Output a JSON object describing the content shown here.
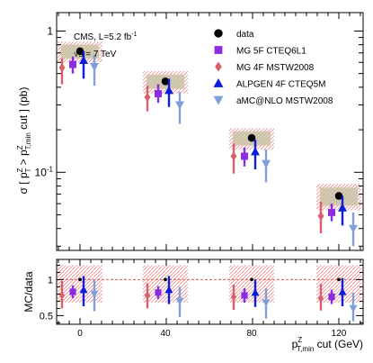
{
  "chart_data": {
    "type": "scatter",
    "x_categories": [
      0,
      40,
      80,
      120
    ],
    "xlabel_main": "p",
    "xlabel_sup": "Z",
    "xlabel_sub": "T,min",
    "xlabel_tail": " cut (GeV)",
    "ylabel_upper": "σ [ p_T^Z > p_T,min^Z cut ] (pb)",
    "ylabel_lower": "MC/data",
    "annotation_line1": "CMS, L=5.2 fb",
    "annotation_line1_sup": "-1",
    "annotation_line2": "√s = 7 TeV",
    "upper": {
      "yscale": "log",
      "ylim": [
        0.028,
        1.35
      ],
      "ytick_labels": [
        {
          "value": 1,
          "base": "1",
          "exp": ""
        },
        {
          "value": 0.1,
          "base": "10",
          "exp": "-1"
        }
      ],
      "data_values": [
        0.72,
        0.44,
        0.175,
        0.068
      ],
      "data_syst_band": [
        [
          0.64,
          0.8
        ],
        [
          0.39,
          0.49
        ],
        [
          0.155,
          0.195
        ],
        [
          0.058,
          0.078
        ]
      ],
      "data_stat_band": [
        [
          0.6,
          0.84
        ],
        [
          0.36,
          0.52
        ],
        [
          0.145,
          0.205
        ],
        [
          0.054,
          0.083
        ]
      ]
    },
    "lower": {
      "ylim": [
        0.38,
        1.28
      ],
      "ytick_labels": [
        {
          "value": 0.5,
          "label": "0.5"
        },
        {
          "value": 1,
          "label": "1"
        }
      ],
      "reference_line": 1,
      "band": [
        0.68,
        1.2
      ]
    },
    "series": [
      {
        "name": "data",
        "marker": "circle",
        "color": "#000000",
        "offset": 0,
        "values": [
          0.72,
          0.44,
          0.175,
          0.068
        ],
        "ratio": [
          1,
          1,
          1,
          1
        ]
      },
      {
        "name": "MG 5F CTEQ6L1",
        "marker": "square",
        "color": "#8b2be2",
        "offset": -8,
        "values": [
          0.58,
          0.36,
          0.13,
          0.052
        ],
        "err": [
          [
            0.5,
            0.66
          ],
          [
            0.31,
            0.42
          ],
          [
            0.11,
            0.15
          ],
          [
            0.045,
            0.06
          ]
        ],
        "ratio": [
          0.83,
          0.82,
          0.78,
          0.76
        ],
        "ratio_err": [
          [
            0.74,
            0.92
          ],
          [
            0.73,
            0.91
          ],
          [
            0.68,
            0.88
          ],
          [
            0.66,
            0.86
          ]
        ]
      },
      {
        "name": "MG 4F MSTW2008",
        "marker": "diamond",
        "color": "#d95f6a",
        "offset": -20,
        "values": [
          0.55,
          0.34,
          0.13,
          0.049
        ],
        "err": [
          [
            0.42,
            0.64
          ],
          [
            0.27,
            0.41
          ],
          [
            0.098,
            0.16
          ],
          [
            0.037,
            0.062
          ]
        ],
        "ratio": [
          0.78,
          0.78,
          0.76,
          0.74
        ],
        "ratio_err": [
          [
            0.6,
            0.98
          ],
          [
            0.6,
            0.95
          ],
          [
            0.58,
            0.93
          ],
          [
            0.57,
            0.94
          ]
        ]
      },
      {
        "name": "ALPGEN 4F CTEQ5M",
        "marker": "triangle-up",
        "color": "#0a1fd6",
        "offset": 4,
        "values": [
          0.62,
          0.38,
          0.14,
          0.056
        ],
        "err": [
          [
            0.46,
            0.72
          ],
          [
            0.29,
            0.46
          ],
          [
            0.105,
            0.17
          ],
          [
            0.042,
            0.068
          ]
        ],
        "ratio": [
          0.86,
          0.86,
          0.82,
          0.83
        ],
        "ratio_err": [
          [
            0.63,
            1.05
          ],
          [
            0.66,
            1.05
          ],
          [
            0.62,
            1.0
          ],
          [
            0.63,
            1.02
          ]
        ]
      },
      {
        "name": "aMC@NLO MSTW2008",
        "marker": "triangle-down",
        "color": "#7f9fd9",
        "offset": 16,
        "values": [
          0.56,
          0.3,
          0.115,
          0.04
        ],
        "err": [
          [
            0.41,
            0.68
          ],
          [
            0.22,
            0.37
          ],
          [
            0.085,
            0.145
          ],
          [
            0.03,
            0.052
          ]
        ],
        "ratio": [
          0.8,
          0.7,
          0.68,
          0.6
        ],
        "ratio_err": [
          [
            0.56,
            1.0
          ],
          [
            0.48,
            0.9
          ],
          [
            0.46,
            0.88
          ],
          [
            0.42,
            0.82
          ]
        ]
      }
    ],
    "legend_position": "top-right"
  }
}
